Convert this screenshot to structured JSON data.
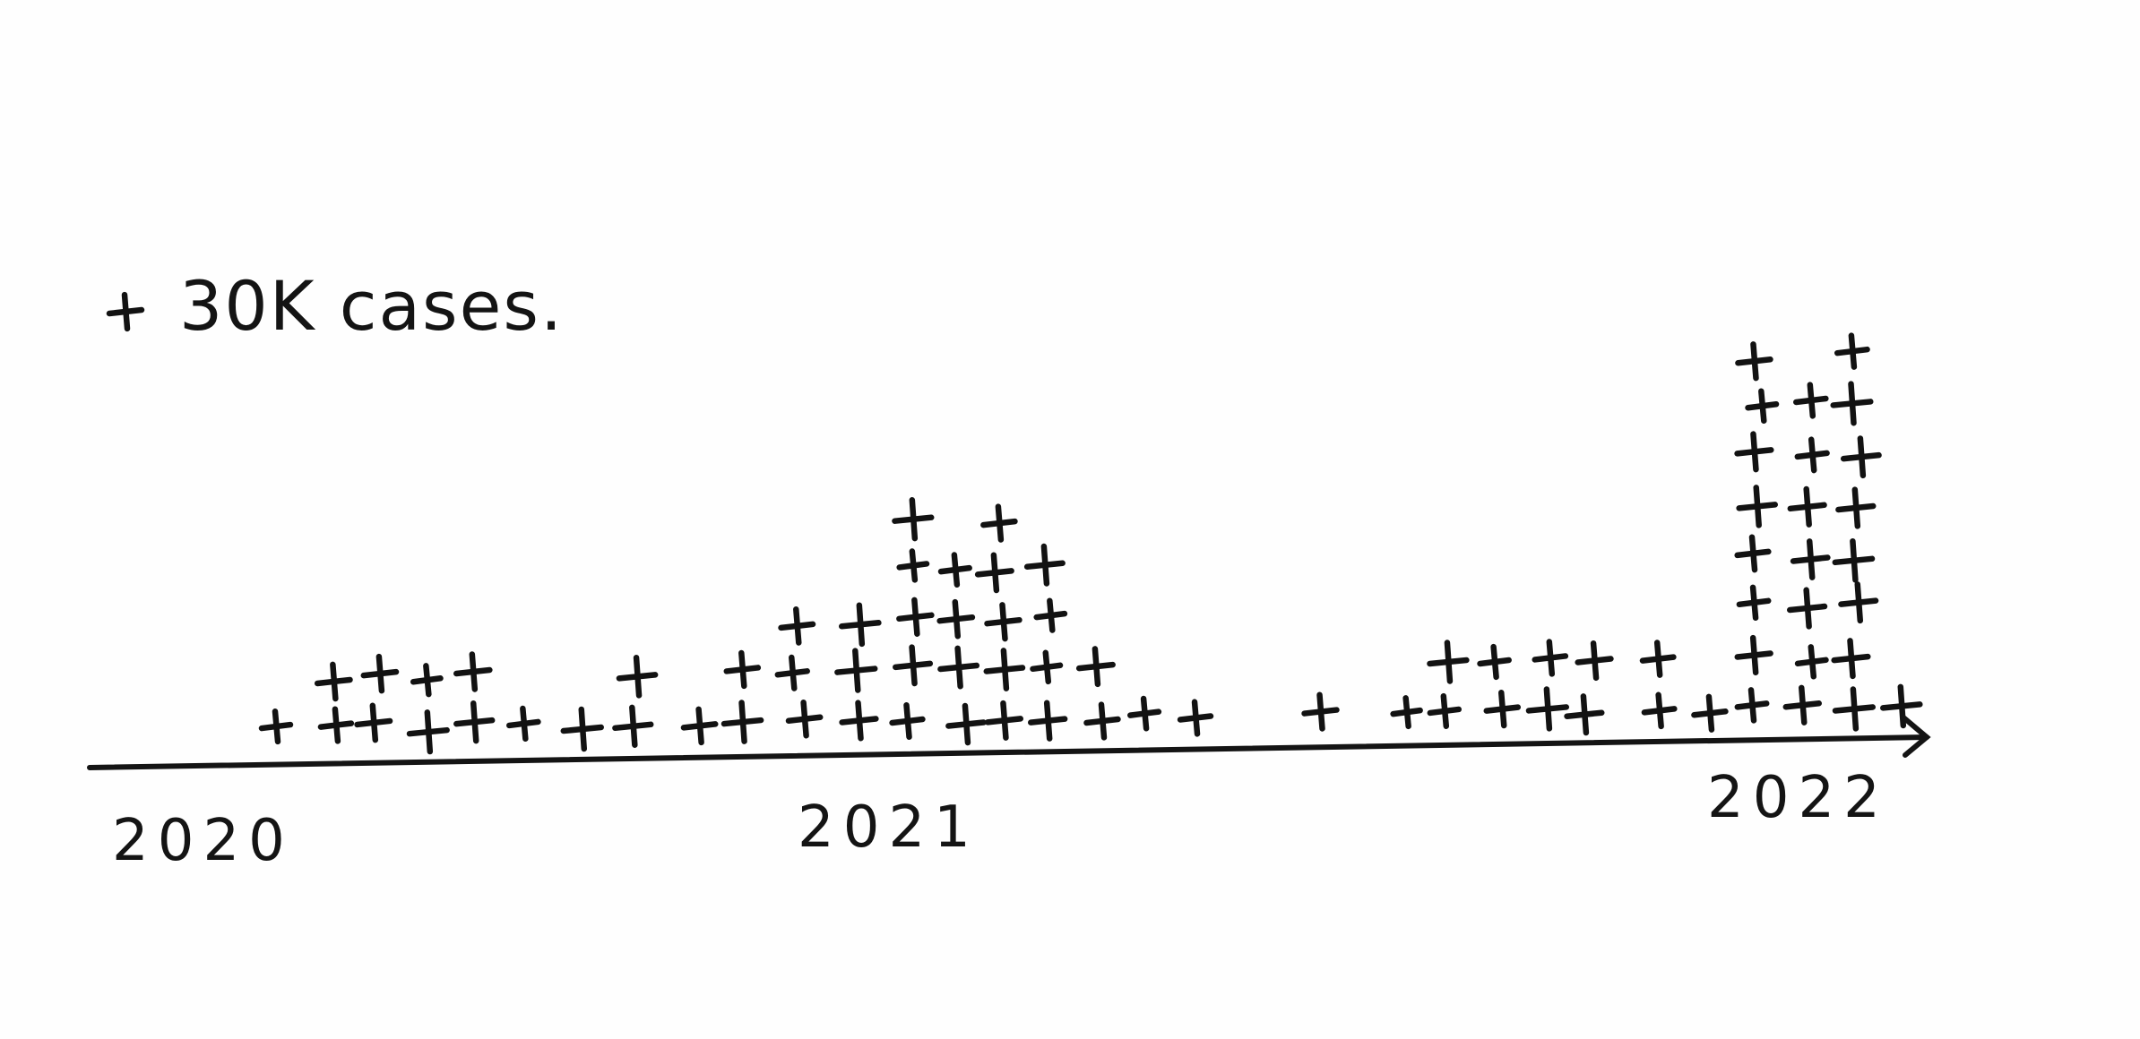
{
  "chart_data": {
    "type": "scatter",
    "title": "",
    "xlabel": "",
    "ylabel": "",
    "legend": {
      "placement": "top-left",
      "symbol": "+",
      "label": "30K cases."
    },
    "unit_per_mark": 30000,
    "grid": false,
    "x_ticks": [
      "2020",
      "2021",
      "2022"
    ],
    "xlim": [
      2020.0,
      2022.15
    ],
    "columns": [
      {
        "x": 2020.1,
        "marks": 1
      },
      {
        "x": 2020.16,
        "marks": 2
      },
      {
        "x": 2020.22,
        "marks": 2
      },
      {
        "x": 2020.28,
        "marks": 2
      },
      {
        "x": 2020.34,
        "marks": 2
      },
      {
        "x": 2020.4,
        "marks": 1
      },
      {
        "x": 2020.47,
        "marks": 1
      },
      {
        "x": 2020.54,
        "marks": 2
      },
      {
        "x": 2020.62,
        "marks": 1
      },
      {
        "x": 2020.67,
        "marks": 2
      },
      {
        "x": 2020.74,
        "marks": 3
      },
      {
        "x": 2020.81,
        "marks": 3
      },
      {
        "x": 2020.88,
        "marks": 5
      },
      {
        "x": 2020.94,
        "marks": 4
      },
      {
        "x": 2020.99,
        "marks": 5
      },
      {
        "x": 2021.05,
        "marks": 4
      },
      {
        "x": 2021.11,
        "marks": 2
      },
      {
        "x": 2021.17,
        "marks": 1
      },
      {
        "x": 2021.23,
        "marks": 1
      },
      {
        "x": 2021.39,
        "marks": 1
      },
      {
        "x": 2021.49,
        "marks": 1
      },
      {
        "x": 2021.54,
        "marks": 2
      },
      {
        "x": 2021.61,
        "marks": 2
      },
      {
        "x": 2021.67,
        "marks": 2
      },
      {
        "x": 2021.72,
        "marks": 2
      },
      {
        "x": 2021.81,
        "marks": 2
      },
      {
        "x": 2021.87,
        "marks": 1
      },
      {
        "x": 2021.93,
        "marks": 8
      },
      {
        "x": 2021.99,
        "marks": 7
      },
      {
        "x": 2022.05,
        "marks": 8
      },
      {
        "x": 2022.1,
        "marks": 1
      }
    ]
  }
}
